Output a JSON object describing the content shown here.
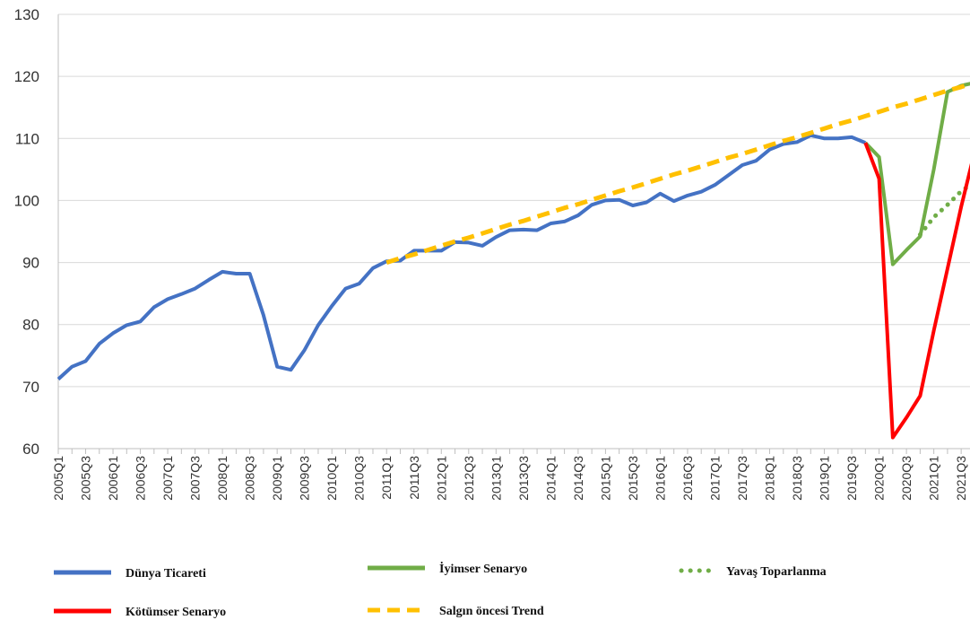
{
  "chart_data": {
    "type": "line",
    "categories": [
      "2005Q1",
      null,
      "2005Q3",
      null,
      "2006Q1",
      null,
      "2006Q3",
      null,
      "2007Q1",
      null,
      "2007Q3",
      null,
      "2008Q1",
      null,
      "2008Q3",
      null,
      "2009Q1",
      null,
      "2009Q3",
      null,
      "2010Q1",
      null,
      "2010Q3",
      null,
      "2011Q1",
      null,
      "2011Q3",
      null,
      "2012Q1",
      null,
      "2012Q3",
      null,
      "2013Q1",
      null,
      "2013Q3",
      null,
      "2014Q1",
      null,
      "2014Q3",
      null,
      "2015Q1",
      null,
      "2015Q3",
      null,
      "2016Q1",
      null,
      "2016Q3",
      null,
      "2017Q1",
      null,
      "2017Q3",
      null,
      "2018Q1",
      null,
      "2018Q3",
      null,
      "2019Q1",
      null,
      "2019Q3",
      null,
      "2020Q1",
      null,
      "2020Q3",
      null,
      "2021Q1",
      null,
      "2021Q3",
      null
    ],
    "series": [
      {
        "name": "Dünya Ticareti",
        "color": "#4472c4",
        "dash": "solid",
        "values": [
          71.2,
          73.2,
          74.1,
          76.9,
          78.6,
          79.9,
          80.5,
          82.8,
          84.1,
          84.9,
          85.8,
          87.2,
          88.5,
          88.2,
          88.2,
          81.5,
          73.2,
          72.7,
          75.9,
          79.9,
          83.0,
          85.8,
          86.6,
          89.1,
          90.2,
          90.3,
          91.9,
          91.9,
          91.9,
          93.3,
          93.2,
          92.7,
          94.1,
          95.2,
          95.3,
          95.2,
          96.3,
          96.6,
          97.6,
          99.3,
          100.0,
          100.1,
          99.2,
          99.7,
          101.1,
          99.9,
          100.8,
          101.4,
          102.5,
          104.1,
          105.7,
          106.4,
          108.2,
          109.1,
          109.4,
          110.5,
          110.0,
          110.0,
          110.2,
          109.3,
          null,
          null,
          null,
          null,
          null,
          null,
          null,
          null
        ]
      },
      {
        "name": "İyimser Senaryo",
        "color": "#70ad47",
        "dash": "solid",
        "values": [
          null,
          null,
          null,
          null,
          null,
          null,
          null,
          null,
          null,
          null,
          null,
          null,
          null,
          null,
          null,
          null,
          null,
          null,
          null,
          null,
          null,
          null,
          null,
          null,
          null,
          null,
          null,
          null,
          null,
          null,
          null,
          null,
          null,
          null,
          null,
          null,
          null,
          null,
          null,
          null,
          null,
          null,
          null,
          null,
          null,
          null,
          null,
          null,
          null,
          null,
          null,
          null,
          null,
          null,
          null,
          null,
          null,
          null,
          null,
          109.3,
          107.0,
          89.7,
          92.0,
          94.2,
          105.0,
          117.5,
          118.5,
          119.0
        ]
      },
      {
        "name": "Yavaş Toparlanma",
        "color": "#70ad47",
        "dash": "dotted",
        "values": [
          null,
          null,
          null,
          null,
          null,
          null,
          null,
          null,
          null,
          null,
          null,
          null,
          null,
          null,
          null,
          null,
          null,
          null,
          null,
          null,
          null,
          null,
          null,
          null,
          null,
          null,
          null,
          null,
          null,
          null,
          null,
          null,
          null,
          null,
          null,
          null,
          null,
          null,
          null,
          null,
          null,
          null,
          null,
          null,
          null,
          null,
          null,
          null,
          null,
          null,
          null,
          null,
          null,
          null,
          null,
          null,
          null,
          null,
          null,
          null,
          null,
          null,
          null,
          94.5,
          97.3,
          99.3,
          101.5,
          103.0
        ]
      },
      {
        "name": "Kötümser Senaryo",
        "color": "#ff0000",
        "dash": "solid",
        "values": [
          null,
          null,
          null,
          null,
          null,
          null,
          null,
          null,
          null,
          null,
          null,
          null,
          null,
          null,
          null,
          null,
          null,
          null,
          null,
          null,
          null,
          null,
          null,
          null,
          null,
          null,
          null,
          null,
          null,
          null,
          null,
          null,
          null,
          null,
          null,
          null,
          null,
          null,
          null,
          null,
          null,
          null,
          null,
          null,
          null,
          null,
          null,
          null,
          null,
          null,
          null,
          null,
          null,
          null,
          null,
          null,
          null,
          null,
          null,
          109.3,
          103.5,
          61.8,
          65.0,
          68.5,
          79.0,
          89.0,
          99.0,
          108.0
        ]
      },
      {
        "name": "Salgın öncesi Trend",
        "color": "#ffc000",
        "dash": "dashed",
        "values": [
          null,
          null,
          null,
          null,
          null,
          null,
          null,
          null,
          null,
          null,
          null,
          null,
          null,
          null,
          null,
          null,
          null,
          null,
          null,
          null,
          null,
          null,
          null,
          null,
          90.0,
          90.7,
          91.3,
          92.0,
          92.7,
          93.4,
          94.0,
          94.7,
          95.4,
          96.1,
          96.7,
          97.4,
          98.1,
          98.8,
          99.4,
          100.1,
          100.8,
          101.5,
          102.1,
          102.8,
          103.5,
          104.2,
          104.8,
          105.5,
          106.2,
          106.9,
          107.5,
          108.2,
          108.9,
          109.6,
          110.2,
          110.9,
          111.6,
          112.3,
          112.9,
          113.6,
          114.3,
          115.0,
          115.6,
          116.3,
          117.0,
          117.7,
          118.3,
          119.0
        ]
      }
    ],
    "ylim": [
      60,
      130
    ],
    "yticks": [
      60,
      70,
      80,
      90,
      100,
      110,
      120,
      130
    ],
    "grid": true
  }
}
